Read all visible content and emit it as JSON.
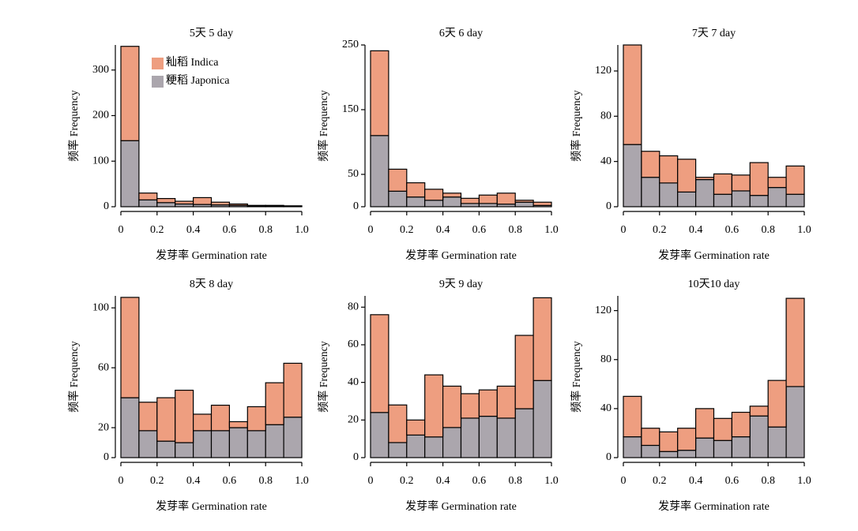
{
  "chart_data": [
    {
      "type": "histogram",
      "title": "5天 5 day",
      "xlabel": "发芽率 Germination rate",
      "ylabel": "频率 Frequency",
      "bins": [
        0,
        0.1,
        0.2,
        0.3,
        0.4,
        0.5,
        0.6,
        0.7,
        0.8,
        0.9,
        1
      ],
      "series": [
        {
          "name": "籼稻 Indica",
          "color": "#ee9e80",
          "values": [
            207,
            15,
            9,
            6,
            15,
            6,
            3,
            1,
            2,
            1
          ]
        },
        {
          "name": "粳稻 Japonica",
          "color": "#aba6ad",
          "values": [
            145,
            15,
            9,
            6,
            5,
            4,
            3,
            2,
            1,
            1
          ]
        }
      ],
      "xlim": [
        0,
        1
      ],
      "xticks": [
        0,
        0.2,
        0.4,
        0.6,
        0.8,
        {
          "value": 1,
          "label": "1.0"
        }
      ],
      "ylim": [
        0,
        355
      ],
      "yticks": [
        0,
        100,
        200,
        300
      ]
    },
    {
      "type": "histogram",
      "title": "6天 6 day",
      "xlabel": "发芽率 Germination rate",
      "ylabel": "频率 Frequency",
      "bins": [
        0,
        0.1,
        0.2,
        0.3,
        0.4,
        0.5,
        0.6,
        0.7,
        0.8,
        0.9,
        1
      ],
      "series": [
        {
          "color": "#ee9e80",
          "values": [
            131,
            34,
            22,
            17,
            6,
            8,
            13,
            17,
            3,
            5
          ]
        },
        {
          "color": "#aba6ad",
          "values": [
            110,
            24,
            15,
            10,
            15,
            5,
            5,
            4,
            7,
            2
          ]
        }
      ],
      "xlim": [
        0,
        1
      ],
      "xticks": [
        0,
        0.2,
        0.4,
        0.6,
        0.8,
        {
          "value": 1,
          "label": "1.0"
        }
      ],
      "ylim": [
        0,
        250
      ],
      "yticks": [
        0,
        50,
        150,
        250
      ]
    },
    {
      "type": "histogram",
      "title": "7天 7 day",
      "xlabel": "发芽率 Germination rate",
      "ylabel": "频率 Frequency",
      "bins": [
        0,
        0.1,
        0.2,
        0.3,
        0.4,
        0.5,
        0.6,
        0.7,
        0.8,
        0.9,
        1
      ],
      "series": [
        {
          "color": "#ee9e80",
          "values": [
            88,
            23,
            24,
            29,
            2,
            18,
            14,
            29,
            9,
            25
          ]
        },
        {
          "color": "#aba6ad",
          "values": [
            55,
            26,
            21,
            13,
            24,
            11,
            14,
            10,
            17,
            11
          ]
        }
      ],
      "xlim": [
        0,
        1
      ],
      "xticks": [
        0,
        0.2,
        0.4,
        0.6,
        0.8,
        {
          "value": 1,
          "label": "1.0"
        }
      ],
      "ylim": [
        0,
        143
      ],
      "yticks": [
        0,
        40,
        80,
        120
      ]
    },
    {
      "type": "histogram",
      "title": "8天 8 day",
      "xlabel": "发芽率 Germination rate",
      "ylabel": "频率 Frequency",
      "bins": [
        0,
        0.1,
        0.2,
        0.3,
        0.4,
        0.5,
        0.6,
        0.7,
        0.8,
        0.9,
        1
      ],
      "series": [
        {
          "color": "#ee9e80",
          "values": [
            67,
            19,
            29,
            35,
            11,
            17,
            4,
            16,
            28,
            36
          ]
        },
        {
          "color": "#aba6ad",
          "values": [
            40,
            18,
            11,
            10,
            18,
            18,
            20,
            18,
            22,
            27
          ]
        }
      ],
      "xlim": [
        0,
        1
      ],
      "xticks": [
        0,
        0.2,
        0.4,
        0.6,
        0.8,
        {
          "value": 1,
          "label": "1.0"
        }
      ],
      "ylim": [
        0,
        108
      ],
      "yticks": [
        0,
        20,
        60,
        100
      ]
    },
    {
      "type": "histogram",
      "title": "9天 9 day",
      "xlabel": "发芽率 Germination rate",
      "ylabel": "频率 Frequency",
      "bins": [
        0,
        0.1,
        0.2,
        0.3,
        0.4,
        0.5,
        0.6,
        0.7,
        0.8,
        0.9,
        1
      ],
      "series": [
        {
          "color": "#ee9e80",
          "values": [
            52,
            20,
            8,
            33,
            22,
            13,
            14,
            17,
            39,
            44
          ]
        },
        {
          "color": "#aba6ad",
          "values": [
            24,
            8,
            12,
            11,
            16,
            21,
            22,
            21,
            26,
            41
          ]
        }
      ],
      "xlim": [
        0,
        1
      ],
      "xticks": [
        0,
        0.2,
        0.4,
        0.6,
        0.8,
        {
          "value": 1,
          "label": "1.0"
        }
      ],
      "ylim": [
        0,
        86
      ],
      "yticks": [
        0,
        20,
        40,
        60,
        80
      ]
    },
    {
      "type": "histogram",
      "title": "10天10 day",
      "xlabel": "发芽率 Germination rate",
      "ylabel": "频率 Frequency",
      "bins": [
        0,
        0.1,
        0.2,
        0.3,
        0.4,
        0.5,
        0.6,
        0.7,
        0.8,
        0.9,
        1
      ],
      "series": [
        {
          "color": "#ee9e80",
          "values": [
            33,
            14,
            16,
            18,
            24,
            18,
            20,
            8,
            38,
            72
          ]
        },
        {
          "color": "#aba6ad",
          "values": [
            17,
            10,
            5,
            6,
            16,
            14,
            17,
            34,
            25,
            58
          ]
        }
      ],
      "xlim": [
        0,
        1
      ],
      "xticks": [
        0,
        0.2,
        0.4,
        0.6,
        0.8,
        {
          "value": 1,
          "label": "1.0"
        }
      ],
      "ylim": [
        0,
        132
      ],
      "yticks": [
        0,
        40,
        80,
        120
      ]
    }
  ]
}
